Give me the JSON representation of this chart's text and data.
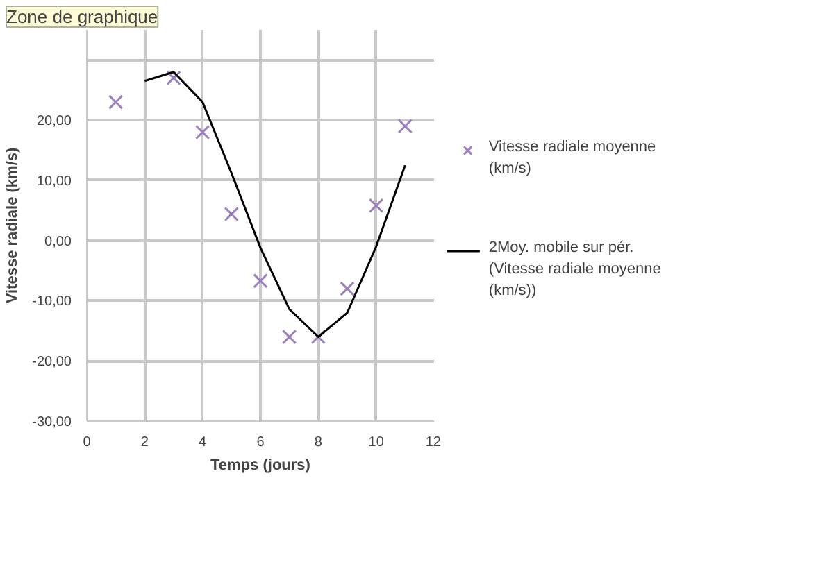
{
  "chart_data": {
    "type": "scatter",
    "xlabel": "Temps (jours)",
    "ylabel": "Vitesse radiale (km/s)",
    "annotations": [
      "Zone de graphique"
    ],
    "series": [
      {
        "name": "Vitesse radiale moyenne (km/s)",
        "marker": "cross",
        "color": "#9b7fc0",
        "x": [
          1,
          2,
          3,
          4,
          5,
          6,
          7,
          8,
          9,
          10,
          11
        ],
        "values": [
          23,
          null,
          27,
          18,
          4.4,
          -6.7,
          -16,
          -16,
          -8,
          5.8,
          19
        ]
      },
      {
        "name": "2Moy. mobile sur pér. (Vitesse radiale moyenne (km/s))",
        "type": "line",
        "marker": "none",
        "color": "#000000",
        "x": [
          2,
          3,
          4,
          5,
          6,
          7,
          8,
          9,
          10,
          11
        ],
        "values": [
          26.5,
          28,
          23,
          11.2,
          -1.2,
          -11.4,
          -16,
          -12,
          -1,
          12.5
        ]
      }
    ],
    "xlim": [
      0,
      12
    ],
    "xticks": [
      0,
      2,
      4,
      6,
      8,
      10,
      12
    ],
    "ylim": [
      -30,
      35
    ],
    "yticks": [
      {
        "value": -30,
        "label": "-30,00"
      },
      {
        "value": -20,
        "label": "-20,00"
      },
      {
        "value": -10,
        "label": "-10,00"
      },
      {
        "value": 0,
        "label": "0,00"
      },
      {
        "value": 10,
        "label": "10,00"
      },
      {
        "value": 20,
        "label": "20,00"
      },
      {
        "value": 30,
        "label": null
      }
    ],
    "grid": true,
    "legend": "right"
  }
}
